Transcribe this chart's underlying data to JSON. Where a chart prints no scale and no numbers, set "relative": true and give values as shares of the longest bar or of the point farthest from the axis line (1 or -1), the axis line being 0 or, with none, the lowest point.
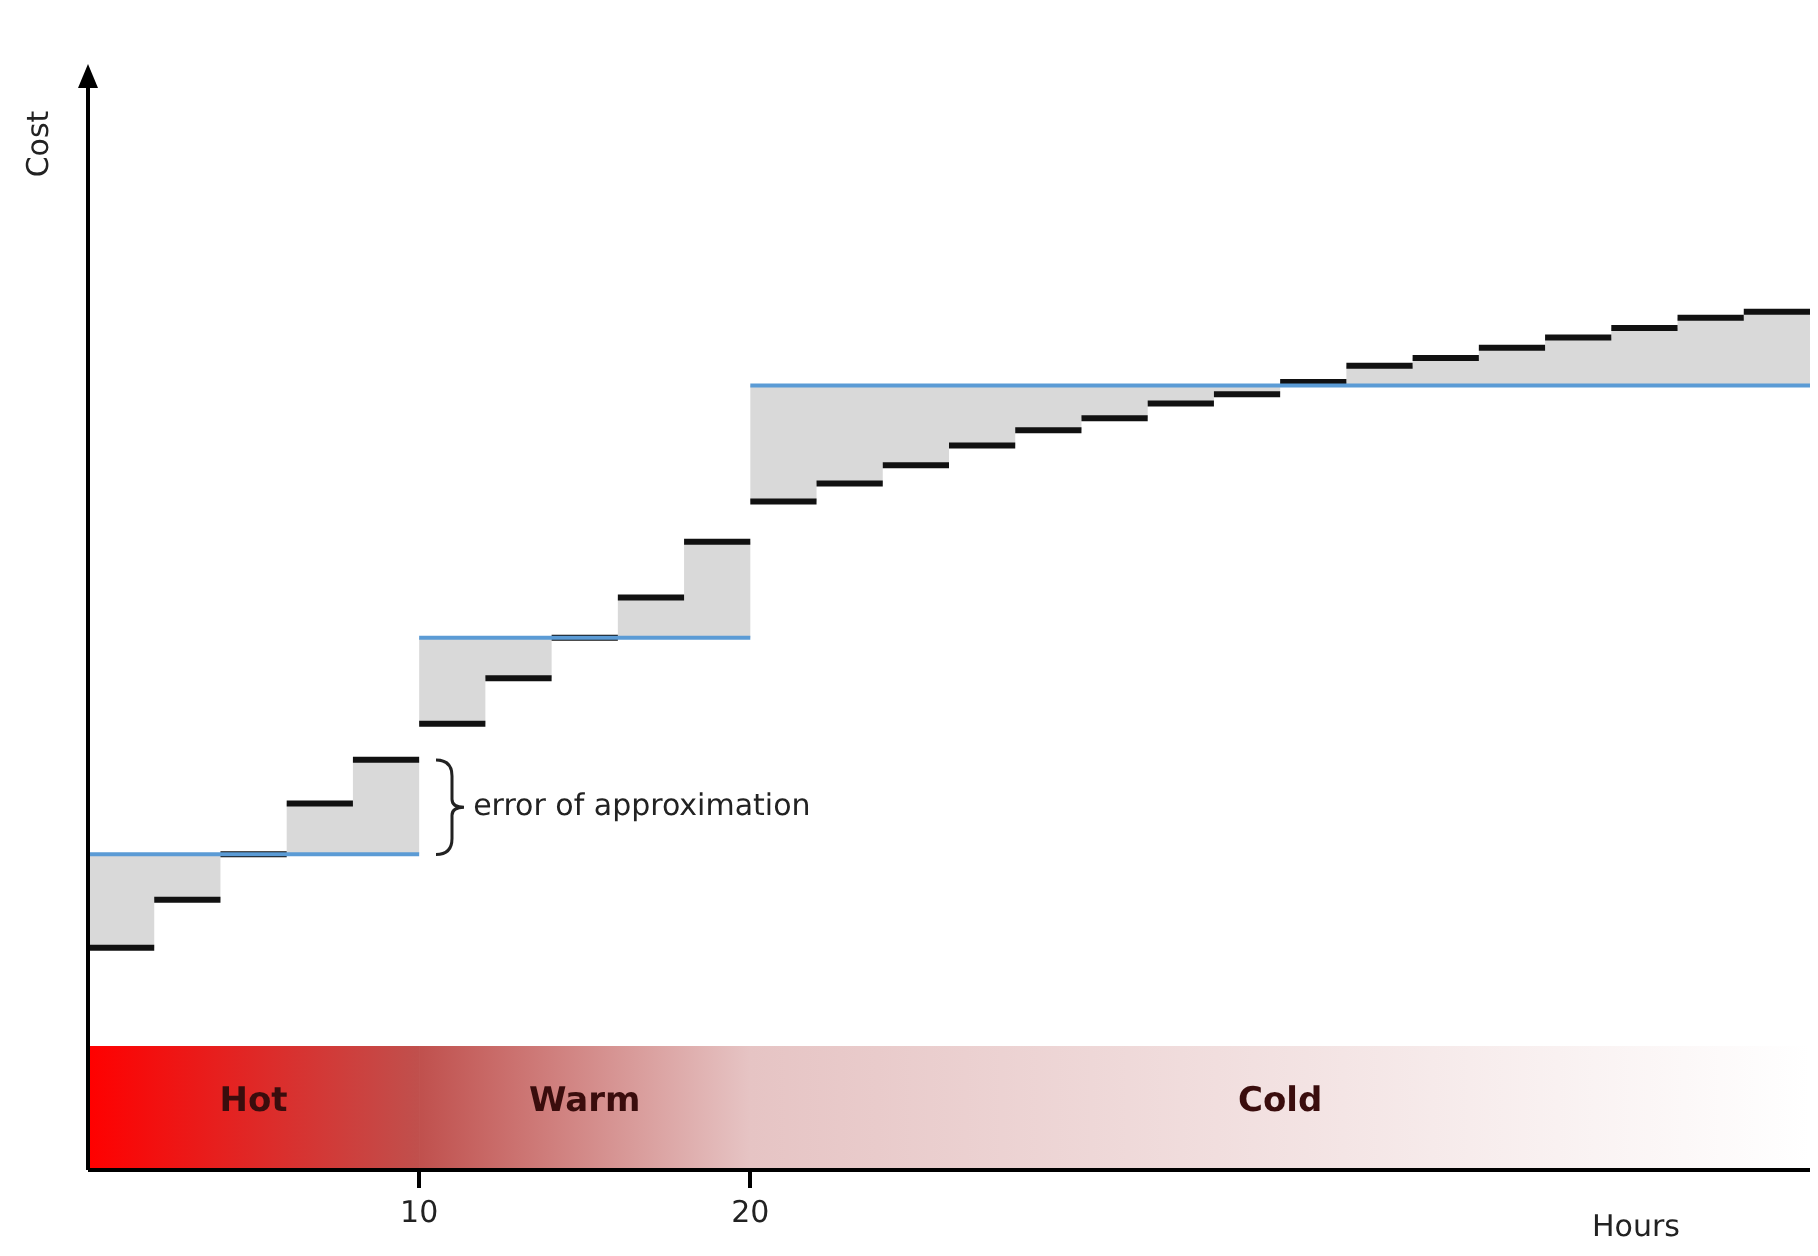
{
  "chart_data": {
    "type": "line",
    "relative": true,
    "xlabel": "Hours",
    "ylabel": "Cost",
    "xlim": [
      0,
      52
    ],
    "xticks": [
      10,
      20
    ],
    "grid": false,
    "series": [
      {
        "color": "#5b9bd5",
        "marker": "none",
        "x": [
          0,
          10,
          10,
          20,
          20,
          52
        ],
        "values": [
          0.368,
          0.368,
          0.62,
          0.62,
          0.914,
          0.914
        ]
      },
      {
        "color": "#111111",
        "marker": "none",
        "x": [
          0,
          2,
          2,
          4,
          4,
          6,
          6,
          8,
          8,
          10,
          10,
          12,
          12,
          14,
          14,
          16,
          16,
          18,
          18,
          20,
          20,
          22,
          22,
          24,
          24,
          26,
          26,
          28,
          28,
          30,
          30,
          32,
          32,
          34,
          34,
          36,
          36,
          38,
          38,
          40,
          40,
          42,
          42,
          44,
          44,
          46,
          46,
          48,
          48,
          50,
          50,
          52
        ],
        "values": [
          0.259,
          0.259,
          0.315,
          0.315,
          0.368,
          0.368,
          0.427,
          0.427,
          0.478,
          0.478,
          0.52,
          0.52,
          0.573,
          0.573,
          0.62,
          0.62,
          0.667,
          0.667,
          0.732,
          0.732,
          0.779,
          0.779,
          0.8,
          0.8,
          0.821,
          0.821,
          0.844,
          0.844,
          0.862,
          0.862,
          0.876,
          0.876,
          0.893,
          0.893,
          0.904,
          0.904,
          0.918,
          0.918,
          0.937,
          0.937,
          0.946,
          0.946,
          0.958,
          0.958,
          0.97,
          0.97,
          0.981,
          0.981,
          0.993,
          0.993,
          1.0,
          1.0
        ],
        "lower": [
          0.259,
          0.259,
          0.315,
          0.315,
          0.368,
          0.368,
          0.368,
          0.368,
          0.368,
          0.368,
          0.52,
          0.52,
          0.573,
          0.573,
          0.62,
          0.62,
          0.62,
          0.62,
          0.62,
          0.62,
          0.779,
          0.779,
          0.8,
          0.8,
          0.821,
          0.821,
          0.844,
          0.844,
          0.862,
          0.862,
          0.876,
          0.876,
          0.893,
          0.893,
          0.904,
          0.904,
          0.914,
          0.914,
          0.914,
          0.914,
          0.914,
          0.914,
          0.914,
          0.914,
          0.914,
          0.914,
          0.914,
          0.914,
          0.914,
          0.914,
          0.914,
          0.914
        ],
        "upper": [
          0.368,
          0.368,
          0.368,
          0.368,
          0.368,
          0.368,
          0.427,
          0.427,
          0.478,
          0.478,
          0.62,
          0.62,
          0.62,
          0.62,
          0.62,
          0.62,
          0.667,
          0.667,
          0.732,
          0.732,
          0.914,
          0.914,
          0.914,
          0.914,
          0.914,
          0.914,
          0.914,
          0.914,
          0.914,
          0.914,
          0.914,
          0.914,
          0.914,
          0.914,
          0.914,
          0.914,
          0.918,
          0.918,
          0.937,
          0.937,
          0.946,
          0.946,
          0.958,
          0.958,
          0.97,
          0.97,
          0.981,
          0.981,
          0.993,
          0.993,
          1.0,
          1.0
        ]
      }
    ],
    "bands": [
      {
        "axis": "x",
        "from": 0,
        "to": 10,
        "label": "Hot",
        "color": "#ff0000"
      },
      {
        "axis": "x",
        "from": 10,
        "to": 20,
        "label": "Warm",
        "color": "#c0504d"
      },
      {
        "axis": "x",
        "from": 20,
        "to": 52,
        "label": "Cold",
        "color": "#e6c4c4"
      }
    ],
    "annotations": [
      {
        "text": "error of approximation",
        "x": 10,
        "y": 0.423
      }
    ]
  }
}
